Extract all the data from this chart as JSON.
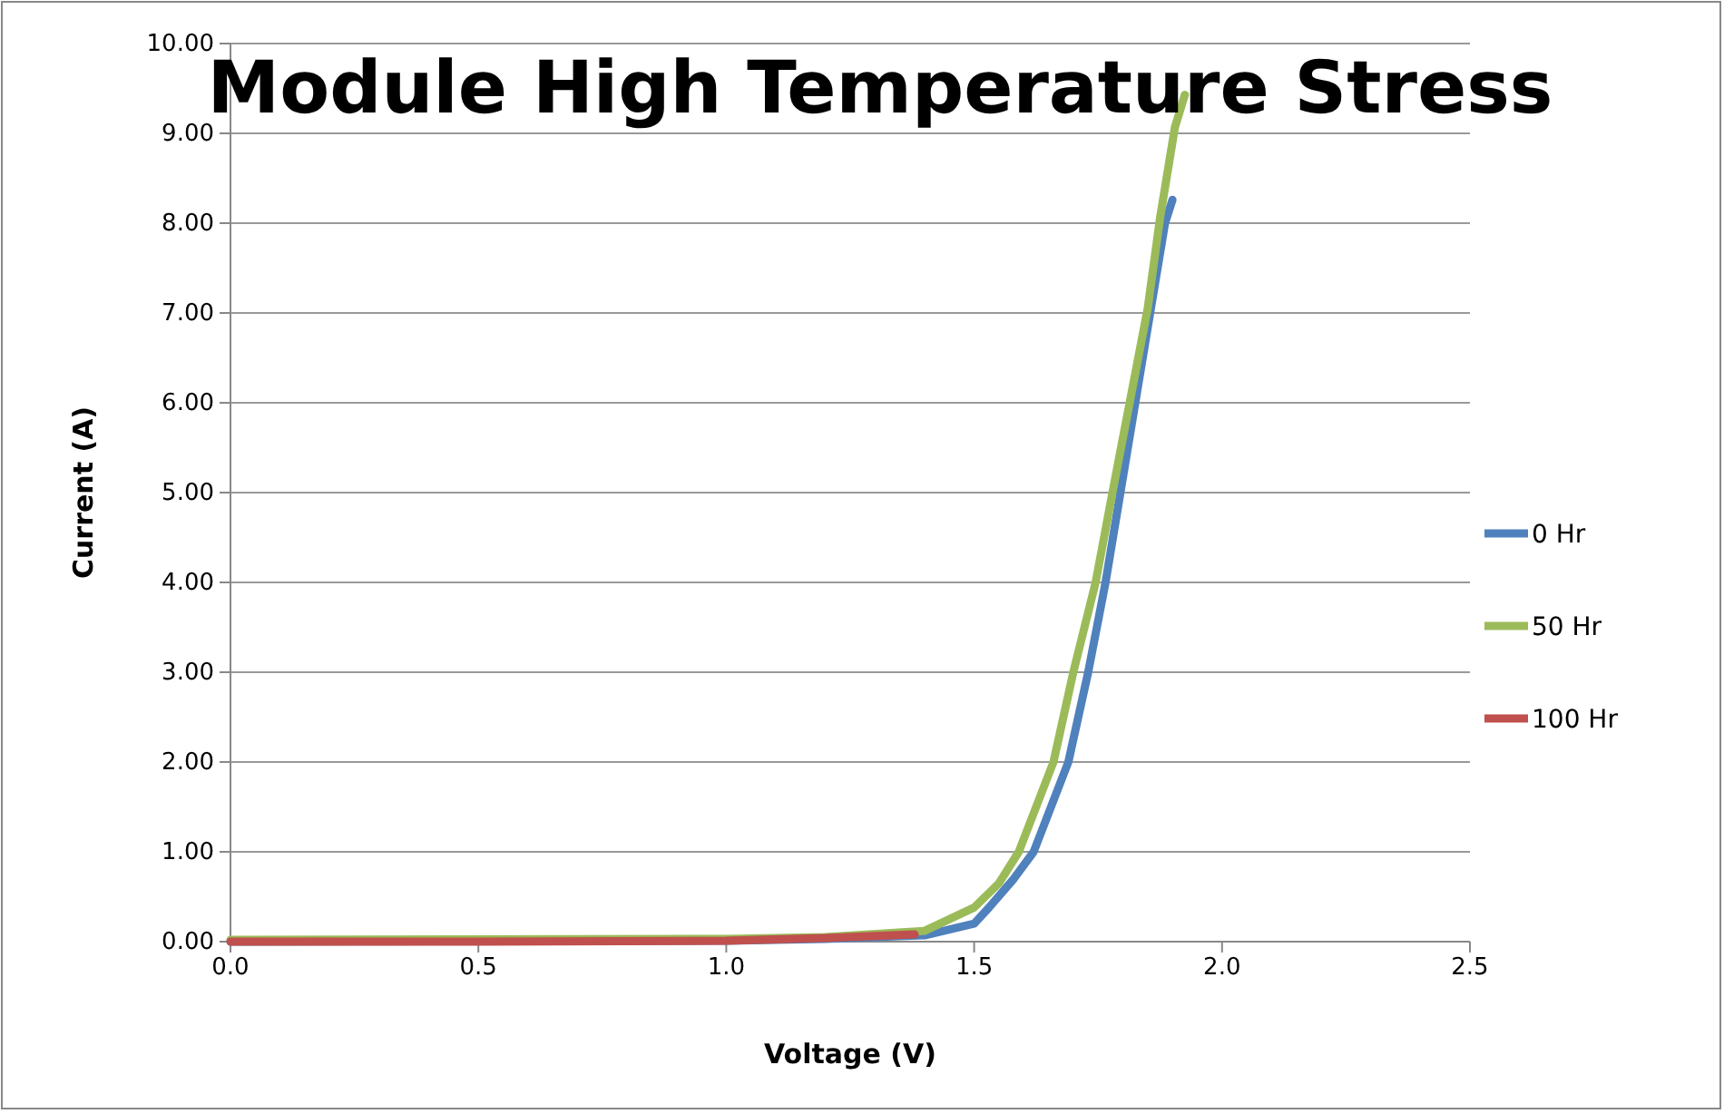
{
  "chart_data": {
    "type": "line",
    "title": "Module High Temperature Stress",
    "xlabel": "Voltage (V)",
    "ylabel": "Current (A)",
    "xlim": [
      0,
      2.5
    ],
    "xticks": [
      {
        "value": 0,
        "label": "0.0"
      },
      {
        "value": 0.5,
        "label": "0.5"
      },
      {
        "value": 1,
        "label": "1.0"
      },
      {
        "value": 1.5,
        "label": "1.5"
      },
      {
        "value": 2,
        "label": "2.0"
      },
      {
        "value": 2.5,
        "label": "2.5"
      }
    ],
    "ylim": [
      0,
      10
    ],
    "yticks": [
      {
        "value": 0,
        "label": "0.00"
      },
      {
        "value": 1,
        "label": "1.00"
      },
      {
        "value": 2,
        "label": "2.00"
      },
      {
        "value": 3,
        "label": "3.00"
      },
      {
        "value": 4,
        "label": "4.00"
      },
      {
        "value": 5,
        "label": "5.00"
      },
      {
        "value": 6,
        "label": "6.00"
      },
      {
        "value": 7,
        "label": "7.00"
      },
      {
        "value": 8,
        "label": "8.00"
      },
      {
        "value": 9,
        "label": "9.00"
      },
      {
        "value": 10,
        "label": "10.00"
      }
    ],
    "grid": "y",
    "legend": "right",
    "marker": "none",
    "line_style": "solid",
    "series": [
      {
        "name": "0 Hr",
        "color": "#4f81bd",
        "x": [
          0,
          1.0,
          1.2,
          1.4,
          1.5,
          1.53,
          1.58,
          1.62,
          1.69,
          1.73,
          1.765,
          1.795,
          1.825,
          1.855,
          1.885,
          1.9
        ],
        "values": [
          0,
          0.01,
          0.03,
          0.07,
          0.2,
          0.38,
          0.7,
          1.0,
          2.0,
          3.0,
          4.0,
          5.0,
          6.0,
          7.0,
          8.0,
          8.26
        ]
      },
      {
        "name": "50 Hr",
        "color": "#9bbb59",
        "x": [
          0,
          1.0,
          1.2,
          1.4,
          1.5,
          1.55,
          1.59,
          1.66,
          1.7,
          1.745,
          1.78,
          1.815,
          1.85,
          1.875,
          1.905,
          1.925
        ],
        "values": [
          0.02,
          0.03,
          0.05,
          0.12,
          0.38,
          0.65,
          1.0,
          2.0,
          3.0,
          4.0,
          5.03,
          6.04,
          7.05,
          8.06,
          9.07,
          9.43
        ]
      },
      {
        "name": "100 Hr",
        "color": "#c0504d",
        "x": [
          0,
          0.5,
          1.0,
          1.2,
          1.38
        ],
        "values": [
          0,
          0,
          0.01,
          0.04,
          0.08
        ]
      }
    ]
  }
}
